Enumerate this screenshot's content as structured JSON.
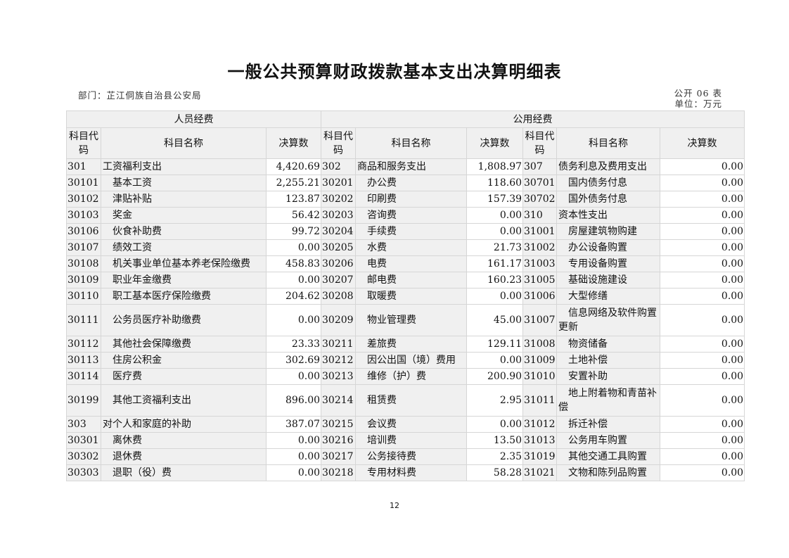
{
  "title": "一般公共预算财政拨款基本支出决算明细表",
  "department": "部门：芷江侗族自治县公安局",
  "form_no": "公开 06 表",
  "unit": "单位：万元",
  "page_number": "12",
  "groups": {
    "personnel": "人员经费",
    "public": "公用经费"
  },
  "columns": {
    "code": "科目代码",
    "name": "科目名称",
    "amount": "决算数"
  },
  "rows": [
    {
      "c1": "301",
      "n1": "工资福利支出",
      "i1": false,
      "v1": "4,420.69",
      "c2": "302",
      "n2": "商品和服务支出",
      "i2": false,
      "v2": "1,808.97",
      "c3": "307",
      "n3": "债务利息及费用支出",
      "i3": false,
      "v3": "0.00"
    },
    {
      "c1": "30101",
      "n1": "基本工资",
      "i1": true,
      "v1": "2,255.21",
      "c2": "30201",
      "n2": "办公费",
      "i2": true,
      "v2": "118.60",
      "c3": "30701",
      "n3": "国内债务付息",
      "i3": true,
      "v3": "0.00"
    },
    {
      "c1": "30102",
      "n1": "津贴补贴",
      "i1": true,
      "v1": "123.87",
      "c2": "30202",
      "n2": "印刷费",
      "i2": true,
      "v2": "157.39",
      "c3": "30702",
      "n3": "国外债务付息",
      "i3": true,
      "v3": "0.00"
    },
    {
      "c1": "30103",
      "n1": "奖金",
      "i1": true,
      "v1": "56.42",
      "c2": "30203",
      "n2": "咨询费",
      "i2": true,
      "v2": "0.00",
      "c3": "310",
      "n3": "资本性支出",
      "i3": false,
      "v3": "0.00"
    },
    {
      "c1": "30106",
      "n1": "伙食补助费",
      "i1": true,
      "v1": "99.72",
      "c2": "30204",
      "n2": "手续费",
      "i2": true,
      "v2": "0.00",
      "c3": "31001",
      "n3": "房屋建筑物购建",
      "i3": true,
      "v3": "0.00"
    },
    {
      "c1": "30107",
      "n1": "绩效工资",
      "i1": true,
      "v1": "0.00",
      "c2": "30205",
      "n2": "水费",
      "i2": true,
      "v2": "21.73",
      "c3": "31002",
      "n3": "办公设备购置",
      "i3": true,
      "v3": "0.00"
    },
    {
      "c1": "30108",
      "n1": "机关事业单位基本养老保险缴费",
      "i1": true,
      "v1": "458.83",
      "c2": "30206",
      "n2": "电费",
      "i2": true,
      "v2": "161.17",
      "c3": "31003",
      "n3": "专用设备购置",
      "i3": true,
      "v3": "0.00"
    },
    {
      "c1": "30109",
      "n1": "职业年金缴费",
      "i1": true,
      "v1": "0.00",
      "c2": "30207",
      "n2": "邮电费",
      "i2": true,
      "v2": "160.23",
      "c3": "31005",
      "n3": "基础设施建设",
      "i3": true,
      "v3": "0.00"
    },
    {
      "c1": "30110",
      "n1": "职工基本医疗保险缴费",
      "i1": true,
      "v1": "204.62",
      "c2": "30208",
      "n2": "取暖费",
      "i2": true,
      "v2": "0.00",
      "c3": "31006",
      "n3": "大型修缮",
      "i3": true,
      "v3": "0.00"
    },
    {
      "c1": "30111",
      "n1": "公务员医疗补助缴费",
      "i1": true,
      "v1": "0.00",
      "c2": "30209",
      "n2": "物业管理费",
      "i2": true,
      "v2": "45.00",
      "c3": "31007",
      "n3": "信息网络及软件购置更新",
      "i3": true,
      "v3": "0.00",
      "tall": true
    },
    {
      "c1": "30112",
      "n1": "其他社会保障缴费",
      "i1": true,
      "v1": "23.33",
      "c2": "30211",
      "n2": "差旅费",
      "i2": true,
      "v2": "129.11",
      "c3": "31008",
      "n3": "物资储备",
      "i3": true,
      "v3": "0.00"
    },
    {
      "c1": "30113",
      "n1": "住房公积金",
      "i1": true,
      "v1": "302.69",
      "c2": "30212",
      "n2": "因公出国（境）费用",
      "i2": true,
      "v2": "0.00",
      "c3": "31009",
      "n3": "土地补偿",
      "i3": true,
      "v3": "0.00"
    },
    {
      "c1": "30114",
      "n1": "医疗费",
      "i1": true,
      "v1": "0.00",
      "c2": "30213",
      "n2": "维修（护）费",
      "i2": true,
      "v2": "200.90",
      "c3": "31010",
      "n3": "安置补助",
      "i3": true,
      "v3": "0.00"
    },
    {
      "c1": "30199",
      "n1": "其他工资福利支出",
      "i1": true,
      "v1": "896.00",
      "c2": "30214",
      "n2": "租赁费",
      "i2": true,
      "v2": "2.95",
      "c3": "31011",
      "n3": "地上附着物和青苗补偿",
      "i3": true,
      "v3": "0.00",
      "tall": true
    },
    {
      "c1": "303",
      "n1": "对个人和家庭的补助",
      "i1": false,
      "v1": "387.07",
      "c2": "30215",
      "n2": "会议费",
      "i2": true,
      "v2": "0.00",
      "c3": "31012",
      "n3": "拆迁补偿",
      "i3": true,
      "v3": "0.00"
    },
    {
      "c1": "30301",
      "n1": "离休费",
      "i1": true,
      "v1": "0.00",
      "c2": "30216",
      "n2": "培训费",
      "i2": true,
      "v2": "13.50",
      "c3": "31013",
      "n3": "公务用车购置",
      "i3": true,
      "v3": "0.00"
    },
    {
      "c1": "30302",
      "n1": "退休费",
      "i1": true,
      "v1": "0.00",
      "c2": "30217",
      "n2": "公务接待费",
      "i2": true,
      "v2": "2.35",
      "c3": "31019",
      "n3": "其他交通工具购置",
      "i3": true,
      "v3": "0.00"
    },
    {
      "c1": "30303",
      "n1": "退职（役）费",
      "i1": true,
      "v1": "0.00",
      "c2": "30218",
      "n2": "专用材料费",
      "i2": true,
      "v2": "58.28",
      "c3": "31021",
      "n3": "文物和陈列品购置",
      "i3": true,
      "v3": "0.00"
    }
  ]
}
